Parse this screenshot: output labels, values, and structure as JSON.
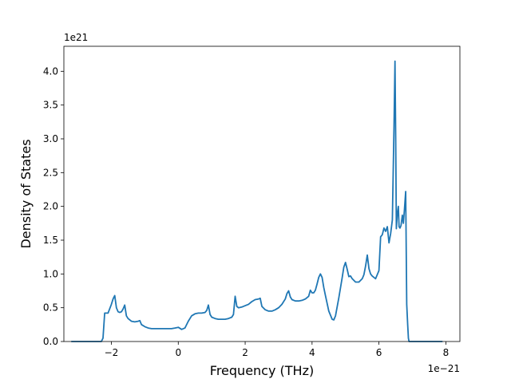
{
  "chart_data": {
    "type": "line",
    "title": "",
    "xlabel": "Frequency (THz)",
    "ylabel": "Density of States",
    "x_offset_text": "1e−21",
    "y_offset_text": "1e21",
    "xlim": [
      -3.42,
      8.42
    ],
    "ylim": [
      0,
      4.37
    ],
    "x_ticks": [
      -2,
      0,
      2,
      4,
      6,
      8
    ],
    "x_tick_labels": [
      "−2",
      "0",
      "2",
      "4",
      "6",
      "8"
    ],
    "y_ticks": [
      0.0,
      0.5,
      1.0,
      1.5,
      2.0,
      2.5,
      3.0,
      3.5,
      4.0
    ],
    "y_tick_labels": [
      "0.0",
      "0.5",
      "1.0",
      "1.5",
      "2.0",
      "2.5",
      "3.0",
      "3.5",
      "4.0"
    ],
    "grid": false,
    "legend": "none",
    "line_color": "#1f77b4",
    "series": [
      {
        "x": [
          -3.2,
          -2.3,
          -2.25,
          -2.2,
          -2.1,
          -2.0,
          -1.95,
          -1.9,
          -1.85,
          -1.8,
          -1.75,
          -1.7,
          -1.65,
          -1.6,
          -1.55,
          -1.5,
          -1.4,
          -1.3,
          -1.2,
          -1.15,
          -1.1,
          -1.0,
          -0.9,
          -0.8,
          -0.6,
          -0.5,
          -0.4,
          -0.3,
          -0.2,
          -0.1,
          0.0,
          0.1,
          0.2,
          0.3,
          0.4,
          0.5,
          0.6,
          0.7,
          0.8,
          0.85,
          0.9,
          0.95,
          1.0,
          1.1,
          1.2,
          1.3,
          1.4,
          1.5,
          1.6,
          1.65,
          1.7,
          1.75,
          1.8,
          1.9,
          2.0,
          2.1,
          2.2,
          2.3,
          2.4,
          2.45,
          2.5,
          2.6,
          2.7,
          2.8,
          2.9,
          3.0,
          3.1,
          3.2,
          3.25,
          3.3,
          3.35,
          3.4,
          3.5,
          3.6,
          3.7,
          3.8,
          3.9,
          3.95,
          4.0,
          4.05,
          4.1,
          4.15,
          4.2,
          4.25,
          4.3,
          4.35,
          4.4,
          4.5,
          4.6,
          4.65,
          4.7,
          4.8,
          4.9,
          4.95,
          5.0,
          5.05,
          5.1,
          5.15,
          5.2,
          5.3,
          5.4,
          5.5,
          5.55,
          5.6,
          5.65,
          5.7,
          5.75,
          5.8,
          5.9,
          6.0,
          6.05,
          6.1,
          6.15,
          6.2,
          6.25,
          6.3,
          6.35,
          6.4,
          6.45,
          6.48,
          6.5,
          6.52,
          6.55,
          6.58,
          6.6,
          6.63,
          6.66,
          6.7,
          6.73,
          6.76,
          6.8,
          6.83,
          6.86,
          6.88,
          6.9,
          6.92,
          6.95,
          6.97,
          7.0,
          7.05,
          7.9
        ],
        "y": [
          0.0,
          0.0,
          0.05,
          0.42,
          0.42,
          0.55,
          0.63,
          0.68,
          0.5,
          0.44,
          0.43,
          0.44,
          0.48,
          0.54,
          0.38,
          0.34,
          0.3,
          0.29,
          0.3,
          0.31,
          0.25,
          0.22,
          0.2,
          0.19,
          0.19,
          0.19,
          0.19,
          0.19,
          0.19,
          0.2,
          0.21,
          0.18,
          0.2,
          0.3,
          0.38,
          0.41,
          0.42,
          0.42,
          0.43,
          0.46,
          0.54,
          0.4,
          0.36,
          0.34,
          0.33,
          0.33,
          0.33,
          0.34,
          0.36,
          0.4,
          0.67,
          0.52,
          0.5,
          0.51,
          0.53,
          0.55,
          0.59,
          0.62,
          0.63,
          0.64,
          0.52,
          0.47,
          0.45,
          0.45,
          0.47,
          0.5,
          0.55,
          0.63,
          0.71,
          0.75,
          0.66,
          0.62,
          0.6,
          0.6,
          0.61,
          0.63,
          0.67,
          0.76,
          0.72,
          0.72,
          0.76,
          0.85,
          0.95,
          1.0,
          0.95,
          0.8,
          0.68,
          0.45,
          0.33,
          0.32,
          0.38,
          0.65,
          0.94,
          1.1,
          1.17,
          1.07,
          0.96,
          0.97,
          0.93,
          0.88,
          0.88,
          0.93,
          0.99,
          1.12,
          1.28,
          1.08,
          1.0,
          0.97,
          0.93,
          1.05,
          1.55,
          1.58,
          1.68,
          1.63,
          1.7,
          1.46,
          1.6,
          1.8,
          3.2,
          4.15,
          3.0,
          1.67,
          1.9,
          2.0,
          1.7,
          1.68,
          1.72,
          1.87,
          1.75,
          1.95,
          2.22,
          0.55,
          0.25,
          0.05,
          0.0,
          0.0,
          0.0,
          0.0,
          0.0,
          0.0,
          0.0
        ]
      }
    ]
  }
}
